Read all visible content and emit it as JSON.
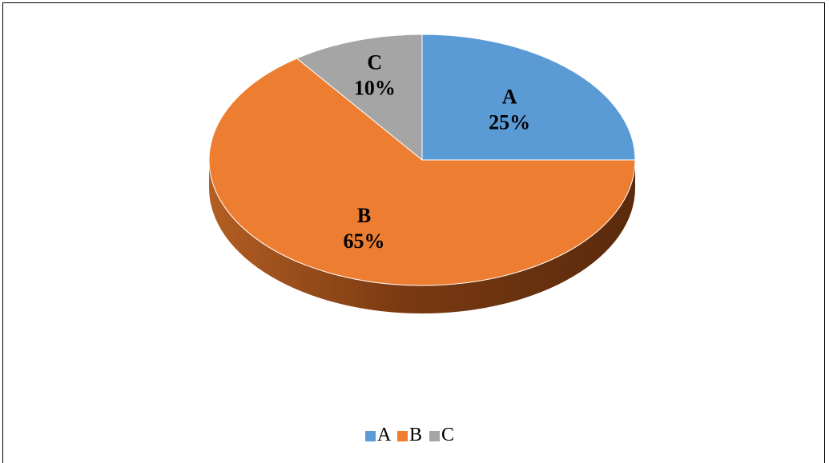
{
  "chart_data": {
    "type": "pie",
    "style": "3d",
    "categories": [
      "A",
      "B",
      "C"
    ],
    "values": [
      25,
      65,
      10
    ],
    "value_labels": [
      "25%",
      "65%",
      "10%"
    ],
    "colors": [
      "#5B9BD5",
      "#ED7D31",
      "#A5A5A5"
    ],
    "side_colors": [
      "#3F6E99",
      "#8F4516",
      "#6E6E6E"
    ],
    "start_angle_deg": 0,
    "direction": "clockwise",
    "legend": {
      "position": "bottom",
      "entries": [
        "A",
        "B",
        "C"
      ]
    },
    "title": ""
  }
}
